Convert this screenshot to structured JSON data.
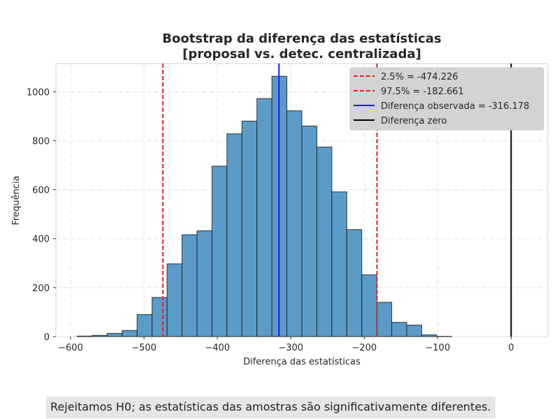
{
  "chart_data": {
    "type": "bar",
    "title_lines": [
      "Bootstrap da diferença das estatísticas",
      "[proposal vs. detec. centralizada]"
    ],
    "xlabel": "Diferença das estatísticas",
    "ylabel": "Frequência",
    "xlim": [
      -620,
      50
    ],
    "ylim": [
      0,
      1115
    ],
    "x_ticks": [
      -600,
      -500,
      -400,
      -300,
      -200,
      -100,
      0
    ],
    "y_ticks": [
      0,
      200,
      400,
      600,
      800,
      1000
    ],
    "grid": true,
    "bins": {
      "start": -591,
      "width": 20.4,
      "counts": [
        2,
        5,
        13,
        25,
        90,
        160,
        297,
        416,
        432,
        696,
        828,
        880,
        972,
        1063,
        922,
        860,
        774,
        591,
        437,
        252,
        140,
        58,
        47,
        7,
        1,
        0,
        0,
        0,
        0,
        0,
        0
      ]
    },
    "bar_color": "#5b9bc8",
    "reference_lines": [
      {
        "label": "2.5% = -474.226",
        "value": -474.226,
        "color": "#e02020",
        "style": "dashed"
      },
      {
        "label": "97.5% = -182.661",
        "value": -182.661,
        "color": "#e02020",
        "style": "dashed"
      },
      {
        "label": "Diferença observada = -316.178",
        "value": -316.178,
        "color": "#1a1aff",
        "style": "solid"
      },
      {
        "label": "Diferença zero",
        "value": 0,
        "color": "#000000",
        "style": "solid"
      }
    ],
    "legend_position": "top-right"
  },
  "conclusion_text": "Rejeitamos H0; as estatísticas das amostras são significativamente diferentes."
}
